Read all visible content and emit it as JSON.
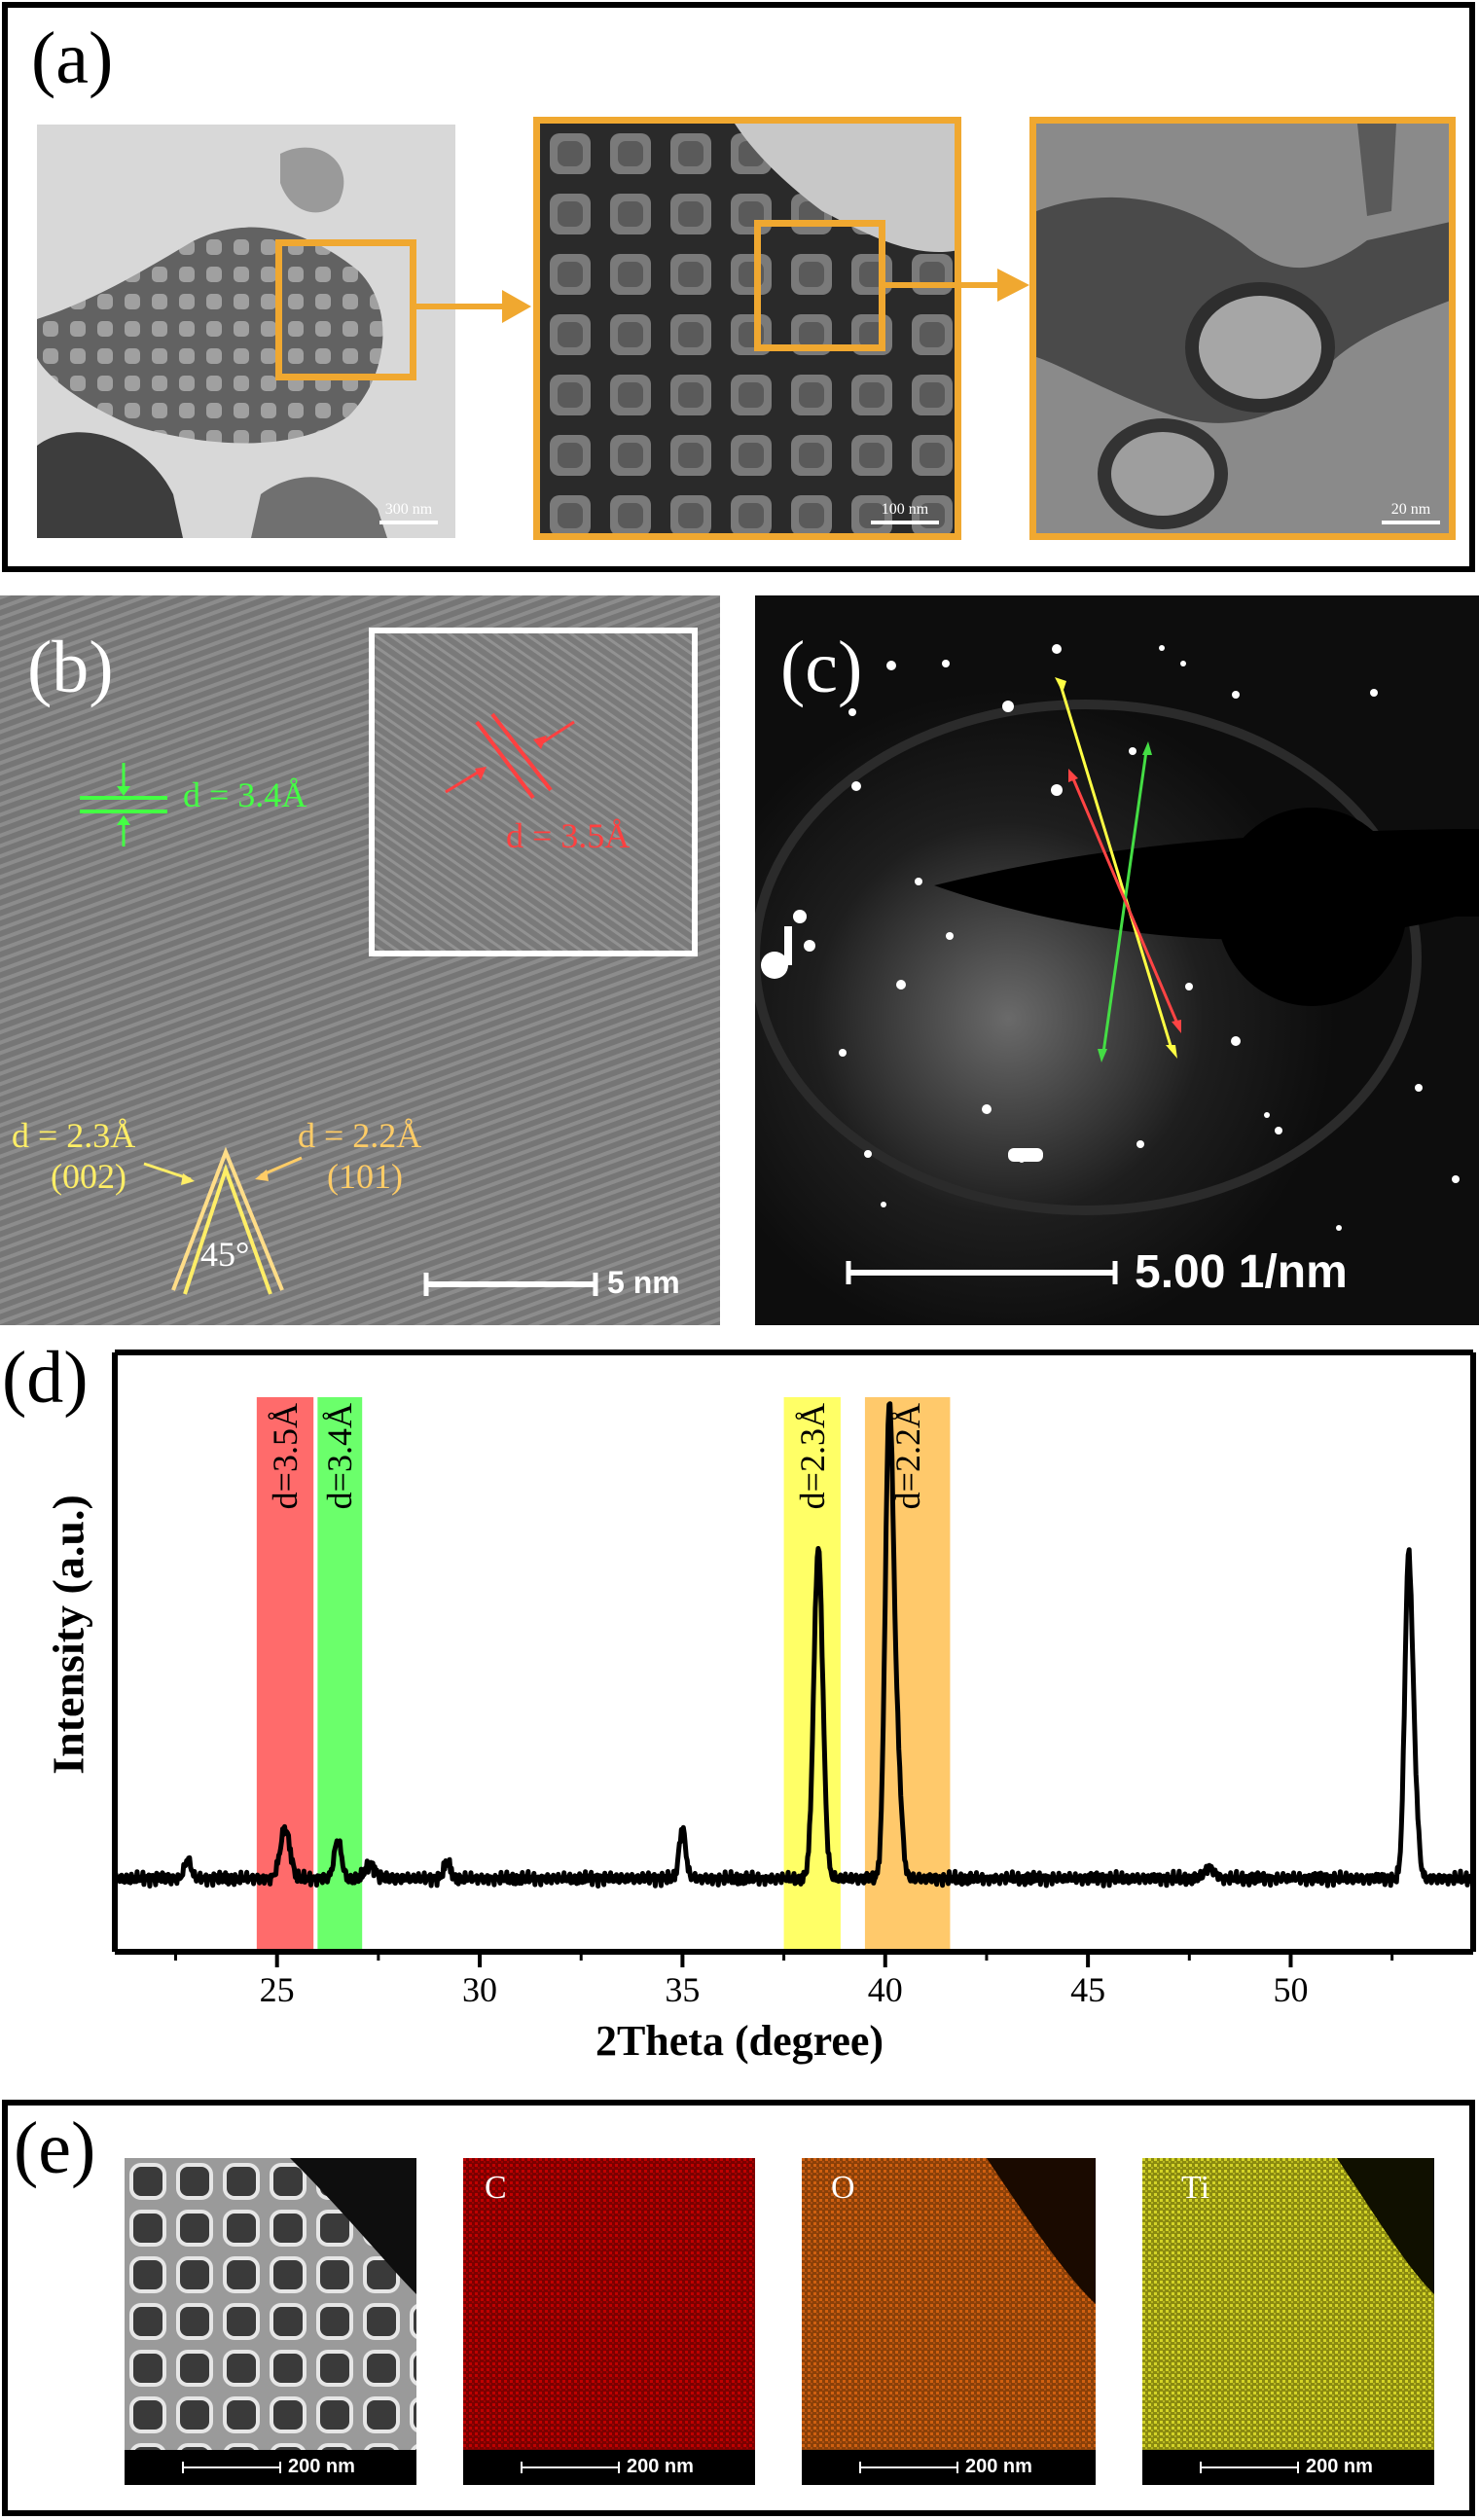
{
  "panels": {
    "a": {
      "label": "(a)",
      "images": [
        {
          "scale_bar": "300 nm"
        },
        {
          "scale_bar": "100 nm"
        },
        {
          "scale_bar": "20 nm"
        }
      ],
      "colors": {
        "frame": "#f0a830",
        "arrow": "#f0a830"
      }
    },
    "b": {
      "label": "(b)",
      "annotations": {
        "green_d": "d = 3.4Å",
        "red_d": "d = 3.5Å",
        "left_d": "d = 2.3Å",
        "left_hkl": "(002)",
        "right_d": "d = 2.2Å",
        "right_hkl": "(101)",
        "angle": "45°"
      },
      "scale_bar": "5 nm",
      "colors": {
        "green": "#44ff44",
        "red": "#ff4040",
        "yellow": "#ffee66",
        "orange": "#ffcc66"
      }
    },
    "c": {
      "label": "(c)",
      "scale_bar": "5.00 1/nm"
    },
    "d": {
      "label": "(d)",
      "ylabel": "Intensity (a.u.)",
      "xlabel": "2Theta (degree)",
      "bands": [
        {
          "label": "d=3.5Å",
          "color": "#ff6b6b"
        },
        {
          "label": "d=3.4Å",
          "color": "#6bff6b"
        },
        {
          "label": "d=2.3Å",
          "color": "#ffff66"
        },
        {
          "label": "d=2.2Å",
          "color": "#ffc96b"
        }
      ]
    },
    "e": {
      "label": "(e)",
      "maps": [
        {
          "element": "",
          "scale_bar": "200 nm",
          "color": "#bbbbbb"
        },
        {
          "element": "C",
          "scale_bar": "200 nm",
          "color": "#c00000"
        },
        {
          "element": "O",
          "scale_bar": "200 nm",
          "color": "#d06010"
        },
        {
          "element": "Ti",
          "scale_bar": "200 nm",
          "color": "#c8c820"
        }
      ]
    }
  },
  "chart_data": {
    "type": "line",
    "title": "",
    "xlabel": "2Theta (degree)",
    "ylabel": "Intensity (a.u.)",
    "xlim": [
      21,
      54.5
    ],
    "xticks": [
      25,
      30,
      35,
      40,
      45,
      50
    ],
    "minor_xticks": [
      22.5,
      27.5,
      32.5,
      37.5,
      42.5,
      47.5,
      52.5
    ],
    "ylim": [
      0,
      100
    ],
    "grid": false,
    "highlight_bands": [
      {
        "label": "d=3.5Å",
        "x0": 24.5,
        "x1": 25.9,
        "color": "#ff6b6b"
      },
      {
        "label": "d=3.4Å",
        "x0": 26.0,
        "x1": 27.1,
        "color": "#6bff6b"
      },
      {
        "label": "d=2.3Å",
        "x0": 37.5,
        "x1": 38.9,
        "color": "#ffff66"
      },
      {
        "label": "d=2.2Å",
        "x0": 39.5,
        "x1": 41.6,
        "color": "#ffc96b"
      }
    ],
    "baseline": 8,
    "peaks": [
      {
        "x": 22.8,
        "height": 3.5,
        "width": 0.08
      },
      {
        "x": 25.2,
        "height": 9,
        "width": 0.12
      },
      {
        "x": 26.5,
        "height": 7,
        "width": 0.09
      },
      {
        "x": 27.3,
        "height": 2.5,
        "width": 0.12
      },
      {
        "x": 29.2,
        "height": 3,
        "width": 0.08
      },
      {
        "x": 35.0,
        "height": 9,
        "width": 0.08
      },
      {
        "x": 38.35,
        "height": 60,
        "width": 0.11
      },
      {
        "x": 40.1,
        "height": 84,
        "width": 0.1
      },
      {
        "x": 40.3,
        "height": 20,
        "width": 0.1
      },
      {
        "x": 48.0,
        "height": 2,
        "width": 0.12
      },
      {
        "x": 52.9,
        "height": 55,
        "width": 0.09
      },
      {
        "x": 53.05,
        "height": 15,
        "width": 0.09
      }
    ]
  }
}
